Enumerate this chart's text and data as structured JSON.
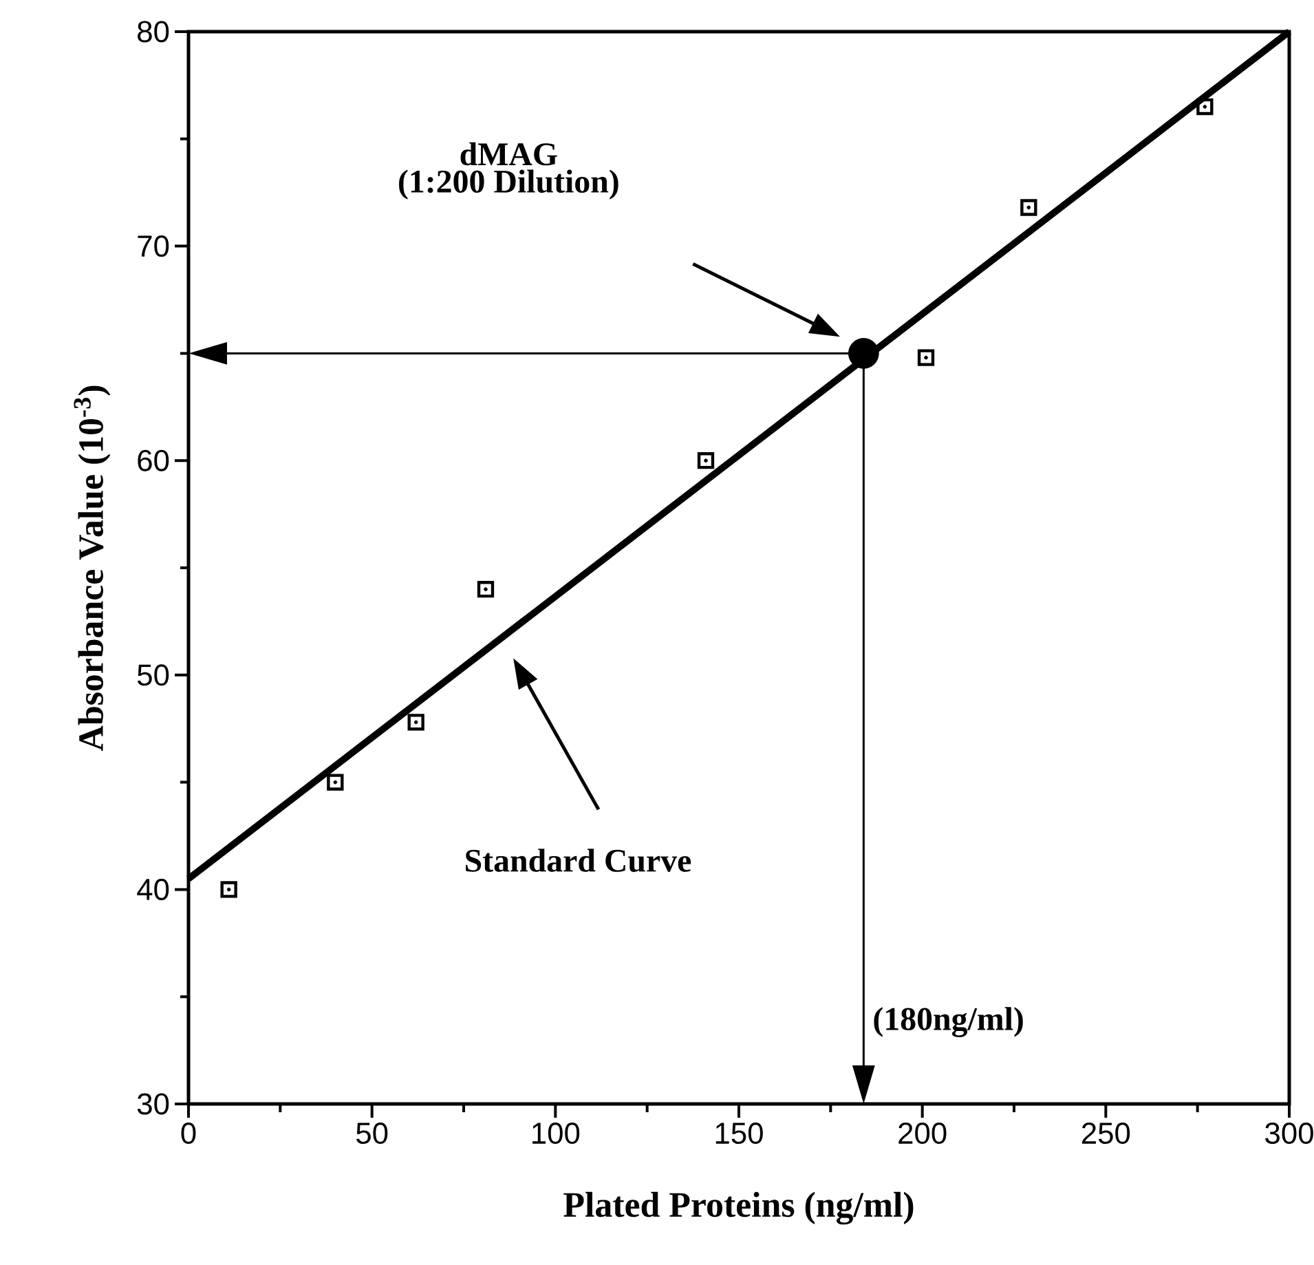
{
  "chart_data": {
    "type": "scatter",
    "xlabel": "Plated Proteins (ng/ml)",
    "ylabel": "Absorbance Value (10$^{-3}$)",
    "xlim": [
      0,
      300
    ],
    "ylim": [
      30,
      80
    ],
    "xticks": [
      0,
      50,
      100,
      150,
      200,
      250,
      300
    ],
    "yticks": [
      30,
      40,
      50,
      60,
      70,
      80
    ],
    "marker": "square",
    "series": [
      {
        "color": "#000000",
        "x": [
          11,
          40,
          62,
          81,
          141,
          201,
          229,
          277
        ],
        "values": [
          40,
          45,
          47.8,
          54,
          60,
          64.8,
          71.8,
          76.5
        ]
      },
      {
        "type": "line",
        "marker": "none",
        "color": "#000000",
        "x": [
          0,
          300
        ],
        "values": [
          40.5,
          80
        ]
      },
      {
        "type": "scatter",
        "marker": "circle",
        "color": "#000000",
        "x": [
          184
        ],
        "values": [
          65
        ]
      }
    ],
    "annotations": [
      "dMAG",
      "(1:200 Dilution)",
      "Standard Curve",
      "(180ng/ml)"
    ]
  }
}
